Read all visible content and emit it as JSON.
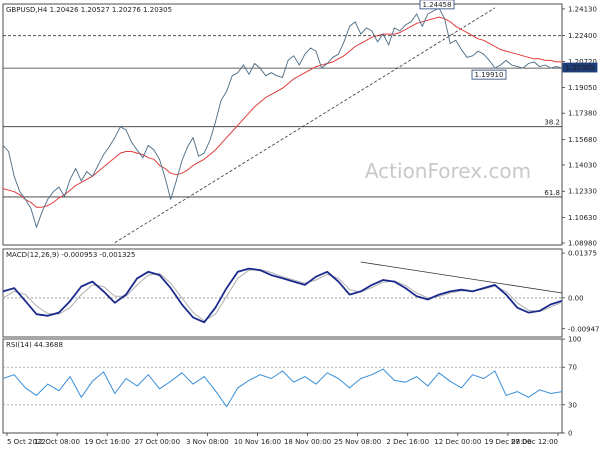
{
  "chart_data": [
    {
      "panel": "price",
      "type": "line",
      "title": "GBPUSD,H4 1.20426 1.20527 1.20276 1.20305",
      "watermark": "ActionForex.com",
      "y_ticks": [
        "1.24130",
        "1.22400",
        "1.20720",
        "1.20305",
        "1.19050",
        "1.17380",
        "1.15680",
        "1.14030",
        "1.12330",
        "1.10630",
        "1.08980"
      ],
      "ylim": [
        1.0885,
        1.2445
      ],
      "close_line": 1.20305,
      "h_levels": [
        {
          "value": 1.224,
          "label": "1.22400",
          "style": "dashed"
        },
        {
          "value": 1.203,
          "label": "",
          "style": "solid"
        },
        {
          "value": 1.1651,
          "label": "38.2",
          "style": "solid"
        },
        {
          "value": 1.1196,
          "label": "61.8",
          "style": "solid"
        }
      ],
      "annotations": [
        {
          "text": "1.24458",
          "value": 1.24458
        },
        {
          "text": "1.19910",
          "value": 1.1991
        },
        {
          "text": "1.20305",
          "value": 1.20305
        }
      ],
      "x": [
        0,
        2,
        4,
        6,
        8,
        10,
        12,
        14,
        16,
        18,
        20,
        22,
        24,
        26,
        28,
        30,
        32,
        34,
        36,
        38,
        40,
        42,
        44,
        46,
        48,
        50,
        52,
        54,
        56,
        58,
        60,
        62,
        64,
        66,
        68,
        70,
        72,
        74,
        76,
        78,
        80,
        82,
        84,
        86,
        88,
        90,
        92,
        94,
        96,
        98,
        100,
        102,
        104,
        106,
        108,
        110,
        112,
        114,
        116,
        118,
        120,
        122,
        124,
        126,
        128,
        130,
        132,
        134,
        136,
        138,
        140,
        142,
        144,
        146,
        148,
        150,
        152,
        154,
        156,
        158,
        160,
        162,
        164,
        166,
        168,
        170,
        172,
        174,
        176,
        178,
        180,
        182,
        184,
        186,
        188,
        190,
        192,
        194,
        196,
        198,
        200
      ],
      "series": [
        {
          "name": "",
          "color": "#4a6b84",
          "values": [
            1.153,
            1.149,
            1.133,
            1.123,
            1.118,
            1.112,
            1.1,
            1.11,
            1.118,
            1.123,
            1.126,
            1.12,
            1.131,
            1.138,
            1.13,
            1.136,
            1.133,
            1.14,
            1.147,
            1.152,
            1.158,
            1.165,
            1.163,
            1.155,
            1.15,
            1.145,
            1.153,
            1.15,
            1.144,
            1.132,
            1.118,
            1.13,
            1.143,
            1.152,
            1.158,
            1.146,
            1.148,
            1.156,
            1.168,
            1.182,
            1.188,
            1.198,
            1.2,
            1.205,
            1.199,
            1.206,
            1.203,
            1.198,
            1.2,
            1.198,
            1.197,
            1.208,
            1.211,
            1.205,
            1.212,
            1.216,
            1.214,
            1.203,
            1.206,
            1.21,
            1.212,
            1.22,
            1.23,
            1.233,
            1.225,
            1.229,
            1.227,
            1.22,
            1.225,
            1.218,
            1.229,
            1.227,
            1.231,
            1.233,
            1.238,
            1.23,
            1.238,
            1.24,
            1.242,
            1.235,
            1.219,
            1.221,
            1.215,
            1.21,
            1.211,
            1.214,
            1.212,
            1.208,
            1.203,
            1.205,
            1.208,
            1.205,
            1.204,
            1.203,
            1.206,
            1.207,
            1.204,
            1.205,
            1.203,
            1.204,
            1.203
          ]
        },
        {
          "name": "",
          "color": "#e03c3c",
          "values": [
            1.125,
            1.124,
            1.123,
            1.121,
            1.118,
            1.116,
            1.113,
            1.113,
            1.114,
            1.116,
            1.119,
            1.121,
            1.124,
            1.127,
            1.129,
            1.131,
            1.133,
            1.136,
            1.139,
            1.142,
            1.145,
            1.148,
            1.149,
            1.149,
            1.148,
            1.147,
            1.145,
            1.144,
            1.14,
            1.138,
            1.135,
            1.134,
            1.135,
            1.137,
            1.14,
            1.142,
            1.144,
            1.147,
            1.15,
            1.154,
            1.158,
            1.162,
            1.166,
            1.17,
            1.174,
            1.178,
            1.181,
            1.184,
            1.186,
            1.188,
            1.19,
            1.193,
            1.196,
            1.198,
            1.2,
            1.202,
            1.204,
            1.205,
            1.206,
            1.207,
            1.209,
            1.211,
            1.214,
            1.217,
            1.219,
            1.221,
            1.223,
            1.224,
            1.225,
            1.225,
            1.225,
            1.226,
            1.228,
            1.23,
            1.232,
            1.233,
            1.234,
            1.235,
            1.236,
            1.235,
            1.233,
            1.23,
            1.228,
            1.226,
            1.224,
            1.222,
            1.221,
            1.219,
            1.217,
            1.215,
            1.214,
            1.213,
            1.212,
            1.211,
            1.21,
            1.209,
            1.209,
            1.208,
            1.208,
            1.207,
            1.207
          ]
        }
      ],
      "trendline": {
        "x": [
          40,
          176
        ],
        "y": [
          1.09,
          1.242
        ],
        "style": "dashed"
      }
    },
    {
      "panel": "macd",
      "type": "line",
      "title": "MACD(12,26,9) -0.000953 -0.001325",
      "y_ticks": [
        "0.01375",
        "0.00",
        "-0.00947"
      ],
      "ylim": [
        -0.012,
        0.015
      ],
      "zero": 0,
      "x": [
        0,
        4,
        8,
        12,
        16,
        20,
        24,
        28,
        32,
        36,
        40,
        44,
        48,
        52,
        56,
        60,
        64,
        68,
        72,
        76,
        80,
        84,
        88,
        92,
        96,
        100,
        104,
        108,
        112,
        116,
        120,
        124,
        128,
        132,
        136,
        140,
        144,
        148,
        152,
        156,
        160,
        164,
        168,
        172,
        176,
        180,
        184,
        188,
        192,
        196,
        200
      ],
      "series": [
        {
          "name": "",
          "color": "#1a2a8c",
          "values": [
            0.002,
            0.003,
            -0.001,
            -0.005,
            -0.0055,
            -0.0045,
            -0.001,
            0.0035,
            0.005,
            0.002,
            -0.0015,
            0.001,
            0.006,
            0.008,
            0.007,
            0.003,
            -0.002,
            -0.006,
            -0.0075,
            -0.003,
            0.003,
            0.008,
            0.009,
            0.0085,
            0.007,
            0.006,
            0.005,
            0.004,
            0.0065,
            0.008,
            0.005,
            0.001,
            0.002,
            0.004,
            0.0055,
            0.005,
            0.003,
            0.0005,
            -0.0005,
            0.001,
            0.002,
            0.0025,
            0.002,
            0.003,
            0.004,
            0.001,
            -0.003,
            -0.0045,
            -0.004,
            -0.002,
            -0.0009
          ]
        },
        {
          "name": "",
          "color": "#b0b0b0",
          "values": [
            0.0,
            0.002,
            0.001,
            -0.0025,
            -0.0048,
            -0.005,
            -0.003,
            0.001,
            0.004,
            0.0035,
            0.0005,
            0.0005,
            0.004,
            0.007,
            0.0075,
            0.0045,
            0.0,
            -0.0045,
            -0.007,
            -0.005,
            0.0005,
            0.006,
            0.0085,
            0.0087,
            0.0078,
            0.0065,
            0.0055,
            0.0045,
            0.0055,
            0.0072,
            0.006,
            0.0025,
            0.0018,
            0.0032,
            0.0048,
            0.0052,
            0.0038,
            0.0015,
            0.0,
            0.0005,
            0.0015,
            0.0022,
            0.0021,
            0.0027,
            0.0036,
            0.002,
            -0.0015,
            -0.0038,
            -0.0042,
            -0.0028,
            -0.0013
          ]
        }
      ],
      "trendline": {
        "x": [
          128,
          200
        ],
        "y": [
          0.011,
          0.0015
        ],
        "style": "solid"
      }
    },
    {
      "panel": "rsi",
      "type": "line",
      "title": "RSI(14) 44.3688",
      "y_ticks": [
        "100",
        "70",
        "30",
        "0"
      ],
      "ylim": [
        0,
        100
      ],
      "levels": [
        70,
        30
      ],
      "x": [
        0,
        4,
        8,
        12,
        16,
        20,
        24,
        28,
        32,
        36,
        40,
        44,
        48,
        52,
        56,
        60,
        64,
        68,
        72,
        76,
        80,
        84,
        88,
        92,
        96,
        100,
        104,
        108,
        112,
        116,
        120,
        124,
        128,
        132,
        136,
        140,
        144,
        148,
        152,
        156,
        160,
        164,
        168,
        172,
        176,
        180,
        184,
        188,
        192,
        196,
        200
      ],
      "series": [
        {
          "name": "",
          "color": "#3a8fd8",
          "values": [
            58,
            62,
            48,
            40,
            52,
            45,
            60,
            38,
            55,
            65,
            42,
            58,
            50,
            62,
            47,
            55,
            64,
            52,
            60,
            45,
            28,
            48,
            56,
            62,
            58,
            66,
            54,
            60,
            52,
            64,
            58,
            48,
            58,
            62,
            68,
            56,
            54,
            60,
            50,
            64,
            55,
            48,
            62,
            58,
            66,
            40,
            44,
            38,
            46,
            42,
            44
          ]
        }
      ]
    }
  ],
  "x_tick_labels": [
    "5 Oct 2022",
    "12 Oct 08:00",
    "19 Oct 16:00",
    "27 Oct 00:00",
    "3 Nov 08:00",
    "10 Nov 16:00",
    "18 Nov 00:00",
    "25 Nov 08:00",
    "2 Dec 16:00",
    "12 Dec 00:00",
    "19 Dec 08:00",
    "27 Dec 12:00"
  ],
  "colors": {
    "price": "#4a6b84",
    "sma": "#e03c3c",
    "macd": "#1a2a8c",
    "signal": "#b0b0b0",
    "rsi": "#3a8fd8",
    "close_box": "#1f3d79"
  }
}
